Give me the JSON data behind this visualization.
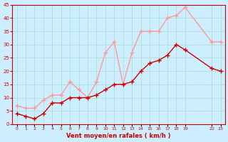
{
  "xlabel": "Vent moyen/en rafales ( km/h )",
  "background_color": "#cceeff",
  "grid_color": "#aaddcc",
  "x_ticks": [
    0,
    1,
    2,
    3,
    4,
    5,
    6,
    7,
    8,
    9,
    10,
    11,
    12,
    13,
    14,
    15,
    16,
    17,
    18,
    19,
    22,
    23
  ],
  "x_values": [
    0,
    1,
    2,
    3,
    4,
    5,
    6,
    7,
    8,
    9,
    10,
    11,
    12,
    13,
    14,
    15,
    16,
    17,
    18,
    19,
    22,
    23
  ],
  "mean_wind": [
    4,
    3,
    2,
    4,
    8,
    8,
    10,
    10,
    10,
    11,
    13,
    15,
    15,
    16,
    20,
    23,
    24,
    26,
    30,
    28,
    21,
    20
  ],
  "gust_wind": [
    7,
    6,
    6,
    9,
    11,
    11,
    16,
    13,
    10,
    16,
    27,
    31,
    15,
    27,
    35,
    35,
    35,
    40,
    41,
    44,
    31,
    31
  ],
  "mean_color": "#cc0000",
  "gust_color": "#ff9999",
  "ylim": [
    0,
    45
  ],
  "yticks": [
    0,
    5,
    10,
    15,
    20,
    25,
    30,
    35,
    40,
    45
  ]
}
